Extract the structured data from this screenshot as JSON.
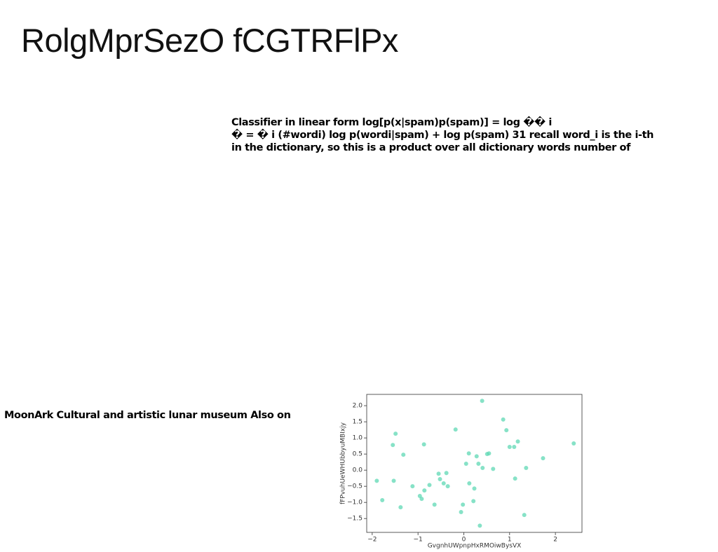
{
  "title": "RolgMprSezO fCGTRFlPx",
  "body": [
    "Classifier in linear form log[p(x|spam)p(spam)] = log �� i",
    "� = � i (#wordi) log p(wordi|spam) + log p(spam) 31 recall word_i is the i-th",
    "in the dictionary, so this is a product over all dictionary words number of"
  ],
  "caption": "MoonArk Cultural and artistic lunar museum Also on",
  "chart_data": {
    "type": "scatter",
    "x_label": "GvgnhUWpnpHxRMOiwBysVX",
    "y_label": "fFPvuhUeWHUbbyuMBIxjy",
    "color": "#5fd8b4",
    "x": [
      0.4,
      -1.9,
      -1.78,
      -1.49,
      -1.55,
      -1.53,
      -1.38,
      -1.32,
      -1.12,
      -0.96,
      -0.92,
      -0.87,
      -0.86,
      -0.75,
      -0.64,
      -0.55,
      -0.52,
      -0.44,
      -0.38,
      -0.35,
      -0.18,
      -0.06,
      -0.02,
      0.05,
      0.11,
      0.12,
      0.21,
      0.23,
      0.28,
      0.32,
      0.35,
      0.41,
      0.51,
      0.55,
      0.64,
      0.86,
      0.93,
      1.0,
      1.1,
      1.12,
      1.18,
      1.32,
      1.36,
      1.73,
      2.4
    ],
    "values": [
      2.15,
      -0.33,
      -0.93,
      1.13,
      0.78,
      -0.33,
      -1.15,
      0.48,
      -0.5,
      -0.8,
      -0.89,
      0.8,
      -0.63,
      -0.46,
      -1.07,
      -0.11,
      -0.28,
      -0.41,
      -0.09,
      -0.5,
      1.26,
      -1.3,
      -1.07,
      0.2,
      0.52,
      -0.41,
      -0.96,
      -0.57,
      0.43,
      0.2,
      -1.72,
      0.07,
      0.5,
      0.52,
      0.04,
      1.57,
      1.24,
      0.72,
      0.72,
      -0.26,
      0.89,
      -1.39,
      0.07,
      0.37,
      0.83
    ],
    "xlim": [
      -2.12,
      2.58
    ],
    "ylim": [
      -1.93,
      2.35
    ],
    "xticks": [
      {
        "value": -2,
        "label": "−2"
      },
      {
        "value": -1,
        "label": "−1"
      },
      0,
      1,
      2
    ],
    "yticks": [
      {
        "value": -1.5,
        "label": "−1.5"
      },
      {
        "value": -1,
        "label": "−1.0"
      },
      {
        "value": -0.5,
        "label": "−0.5"
      },
      {
        "value": 0,
        "label": "0.0"
      },
      0.5,
      {
        "value": 1,
        "label": "1.0"
      },
      1.5,
      {
        "value": 2,
        "label": "2.0"
      }
    ]
  }
}
